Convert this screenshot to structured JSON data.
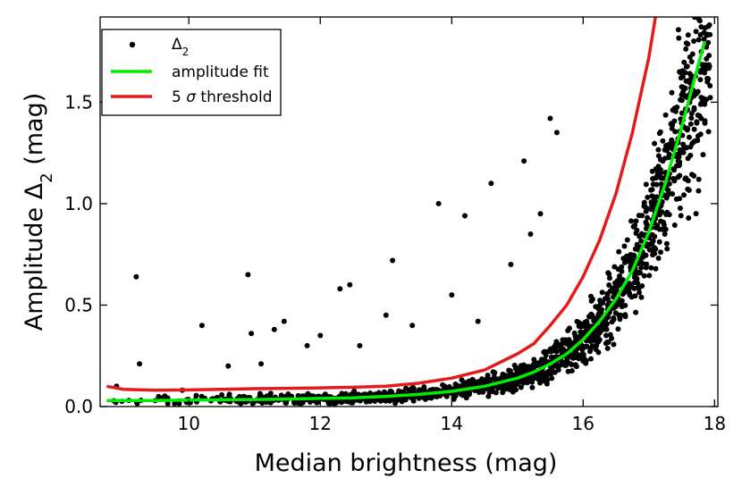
{
  "chart_data": {
    "type": "scatter",
    "xlabel": "Median brightness (mag)",
    "ylabel_main": "Amplitude Δ",
    "ylabel_sub": "2",
    "ylabel_unit": " (mag)",
    "xlim": [
      8.65,
      18.05
    ],
    "ylim": [
      0.0,
      1.92
    ],
    "xticks": [
      10,
      12,
      14,
      16,
      18
    ],
    "yticks": [
      0.0,
      0.5,
      1.0,
      1.5
    ],
    "xtick_labels": [
      "10",
      "12",
      "14",
      "16",
      "18"
    ],
    "ytick_labels": [
      "0.0",
      "0.5",
      "1.0",
      "1.5"
    ],
    "grid": false,
    "legend_position": "top-left",
    "legend": [
      {
        "label_main": "Δ",
        "label_sub": "2",
        "marker": "dot",
        "color": "#000000"
      },
      {
        "label": "amplitude fit",
        "marker": "line",
        "color": "#00ee00"
      },
      {
        "label_pre": "5 ",
        "label_sigma": "σ",
        "label_post": " threshold",
        "marker": "line",
        "color": "#e41a1c"
      }
    ],
    "series": [
      {
        "name": "amplitude fit",
        "color": "#00ee00",
        "x": [
          8.75,
          9.5,
          10.0,
          10.5,
          11.0,
          11.5,
          12.0,
          12.5,
          13.0,
          13.5,
          14.0,
          14.5,
          15.0,
          15.25,
          15.5,
          15.75,
          16.0,
          16.25,
          16.5,
          16.75,
          17.0,
          17.25,
          17.5,
          17.85
        ],
        "y": [
          0.03,
          0.03,
          0.032,
          0.033,
          0.035,
          0.037,
          0.04,
          0.043,
          0.05,
          0.06,
          0.075,
          0.1,
          0.14,
          0.17,
          0.21,
          0.26,
          0.33,
          0.42,
          0.53,
          0.67,
          0.86,
          1.1,
          1.38,
          1.8
        ]
      },
      {
        "name": "5 σ threshold",
        "color": "#e41a1c",
        "x": [
          8.75,
          9.0,
          9.5,
          10.0,
          10.5,
          11.0,
          11.5,
          12.0,
          12.5,
          13.0,
          13.5,
          14.0,
          14.5,
          15.0,
          15.25,
          15.5,
          15.75,
          16.0,
          16.25,
          16.5,
          16.75,
          17.0,
          17.1
        ],
        "y": [
          0.1,
          0.085,
          0.08,
          0.082,
          0.085,
          0.088,
          0.09,
          0.092,
          0.095,
          0.1,
          0.115,
          0.14,
          0.18,
          0.26,
          0.31,
          0.4,
          0.5,
          0.64,
          0.82,
          1.05,
          1.35,
          1.72,
          1.92
        ]
      }
    ],
    "scatter_outliers": {
      "name": "Δ2",
      "x": [
        9.2,
        9.25,
        8.9,
        10.2,
        10.9,
        10.95,
        11.3,
        11.45,
        12.0,
        12.3,
        12.45,
        13.1,
        13.8,
        14.2,
        14.6,
        15.1,
        15.5,
        15.6,
        15.35,
        10.6,
        11.1,
        12.6,
        13.4,
        14.0,
        14.4,
        15.2,
        9.9,
        11.8,
        13.0,
        14.9
      ],
      "y": [
        0.64,
        0.21,
        0.1,
        0.4,
        0.65,
        0.36,
        0.38,
        0.42,
        0.35,
        0.58,
        0.6,
        0.72,
        1.0,
        0.94,
        1.1,
        1.21,
        1.42,
        1.35,
        0.95,
        0.2,
        0.21,
        0.3,
        0.4,
        0.55,
        0.42,
        0.85,
        0.08,
        0.3,
        0.45,
        0.7
      ]
    },
    "scatter_band": {
      "name": "Δ2",
      "x_from": 8.75,
      "x_to": 17.95,
      "point_count": 1500,
      "seed": 7
    }
  }
}
